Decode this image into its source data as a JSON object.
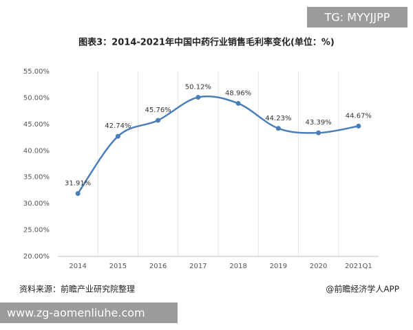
{
  "header": {
    "tag": "TG: MYYJJPP"
  },
  "chart_data": {
    "type": "line",
    "title": "图表3：2014-2021年中国中药行业销售毛利率变化(单位：%)",
    "categories": [
      "2014",
      "2015",
      "2016",
      "2017",
      "2018",
      "2019",
      "2020",
      "2021Q1"
    ],
    "values": [
      31.91,
      42.74,
      45.76,
      50.12,
      48.96,
      44.23,
      43.39,
      44.67
    ],
    "value_labels": [
      "31.91%",
      "42.74%",
      "45.76%",
      "50.12%",
      "48.96%",
      "44.23%",
      "43.39%",
      "44.67%"
    ],
    "color": "#4a7ebb",
    "ylim": [
      20,
      55
    ],
    "yticks": [
      {
        "value": 20,
        "label": "20.00%"
      },
      {
        "value": 25,
        "label": "25.00%"
      },
      {
        "value": 30,
        "label": "30.00%"
      },
      {
        "value": 35,
        "label": "35.00%"
      },
      {
        "value": 40,
        "label": "40.00%"
      },
      {
        "value": 45,
        "label": "45.00%"
      },
      {
        "value": 50,
        "label": "50.00%"
      },
      {
        "value": 55,
        "label": "55.00%"
      }
    ],
    "grid": true
  },
  "footer": {
    "source": "资料来源：前瞻产业研究院整理",
    "credit": "@前瞻经济学人APP",
    "website": "www.zg-aomenliuhe.com"
  }
}
